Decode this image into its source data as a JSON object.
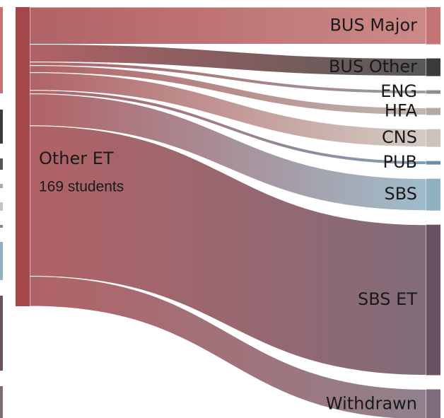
{
  "chart_data": {
    "type": "sankey",
    "source": {
      "name": "Other ET",
      "value": 169,
      "value_label": "169 students",
      "color": "#a3474b"
    },
    "targets": [
      {
        "name": "BUS Major",
        "value": 21,
        "color": "#c47473"
      },
      {
        "name": "BUS Other",
        "value": 10,
        "color": "#3b3b3b"
      },
      {
        "name": "ENG",
        "value": 2,
        "color": "#8c8c8c"
      },
      {
        "name": "HFA",
        "value": 4,
        "color": "#b3aba3"
      },
      {
        "name": "CNS",
        "value": 10,
        "color": "#cbc3bb"
      },
      {
        "name": "PUB",
        "value": 2,
        "color": "#6d8ca8"
      },
      {
        "name": "SBS",
        "value": 18,
        "color": "#8fb1c2"
      },
      {
        "name": "SBS ET",
        "value": 85,
        "color": "#6b5262"
      },
      {
        "name": "Withdrawn",
        "value": 17,
        "color": "#7d6c79"
      }
    ]
  }
}
